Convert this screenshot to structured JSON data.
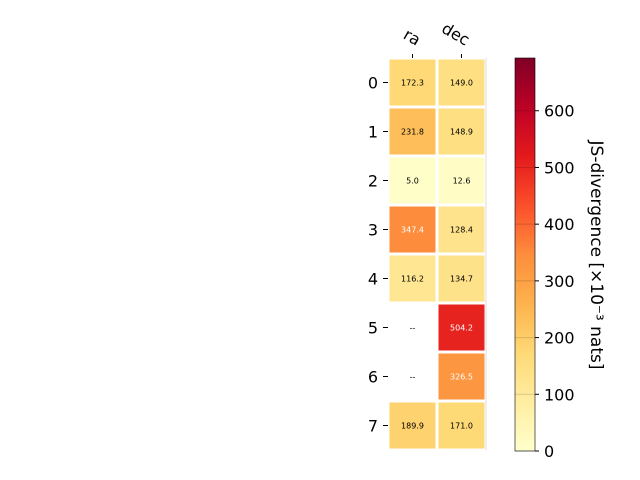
{
  "chart_data": {
    "type": "heatmap",
    "columns": [
      "ra",
      "dec"
    ],
    "rows": [
      "0",
      "1",
      "2",
      "3",
      "4",
      "5",
      "6",
      "7"
    ],
    "values": [
      [
        172.3,
        149.0
      ],
      [
        231.8,
        148.9
      ],
      [
        5.0,
        12.6
      ],
      [
        347.4,
        128.4
      ],
      [
        116.2,
        134.7
      ],
      [
        null,
        504.2
      ],
      [
        null,
        326.5
      ],
      [
        189.9,
        171.0
      ]
    ],
    "cell_labels": [
      [
        "172.3",
        "149.0"
      ],
      [
        "231.8",
        "148.9"
      ],
      [
        "5.0",
        "12.6"
      ],
      [
        "347.4",
        "128.4"
      ],
      [
        "116.2",
        "134.7"
      ],
      [
        "--",
        "504.2"
      ],
      [
        "--",
        "326.5"
      ],
      [
        "189.9",
        "171.0"
      ]
    ],
    "colorbar": {
      "label": "JS-divergence [×10⁻³ nats]",
      "range": [
        0,
        693
      ],
      "ticks": [
        0,
        100,
        200,
        300,
        400,
        500,
        600
      ],
      "colormap": "YlOrRd"
    }
  }
}
